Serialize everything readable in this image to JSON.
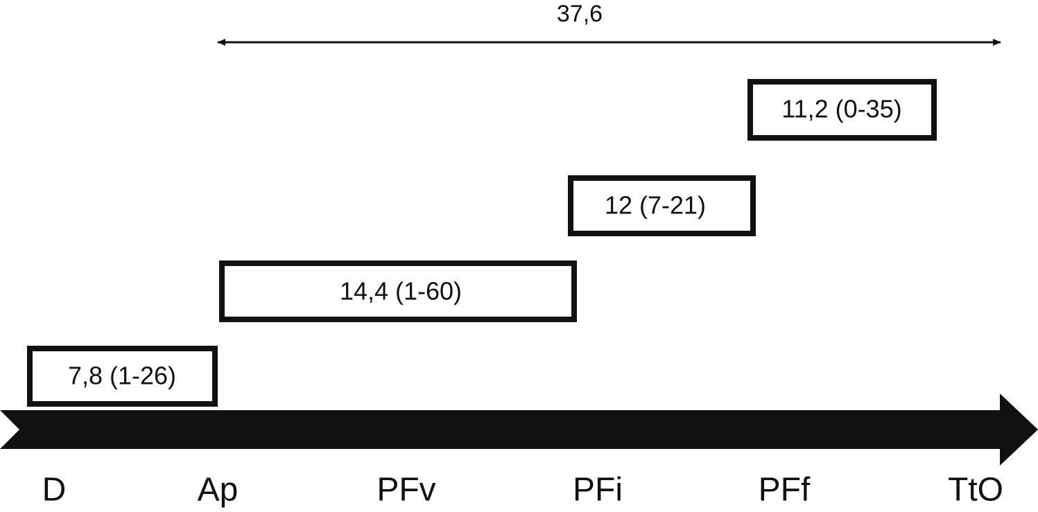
{
  "span_label": "37,6",
  "boxes": [
    {
      "label": "7,8 (1-26)"
    },
    {
      "label": "14,4 (1-60)"
    },
    {
      "label": "12 (7-21)"
    },
    {
      "label": "11,2 (0-35)"
    }
  ],
  "stages": [
    "D",
    "Ap",
    "PFv",
    "PFi",
    "PFf",
    "TtO"
  ]
}
